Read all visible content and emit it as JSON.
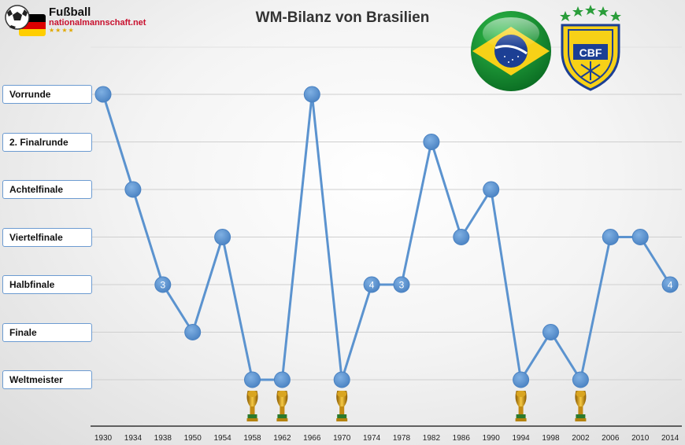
{
  "title": "WM-Bilanz von Brasilien",
  "logo": {
    "line1": "Fußball",
    "line2": "nationalmannschaft.net",
    "stars": "★★★★"
  },
  "crest": {
    "text": "CBF"
  },
  "colors": {
    "line": "#5b93cf",
    "marker": "#5b93cf",
    "label_border": "#6c9bd1"
  },
  "chart_data": {
    "type": "line",
    "title": "WM-Bilanz von Brasilien",
    "x": [
      "1930",
      "1934",
      "1938",
      "1950",
      "1954",
      "1958",
      "1962",
      "1966",
      "1970",
      "1974",
      "1978",
      "1982",
      "1986",
      "1990",
      "1994",
      "1998",
      "2002",
      "2006",
      "2010",
      "2014"
    ],
    "y_categories": [
      "Vorrunde",
      "2. Finalrunde",
      "Achtelfinale",
      "Viertelfinale",
      "Halbfinale",
      "Finale",
      "Weltmeister"
    ],
    "values": [
      "Vorrunde",
      "Achtelfinale",
      "Halbfinale",
      "Finale",
      "Viertelfinale",
      "Weltmeister",
      "Weltmeister",
      "Vorrunde",
      "Weltmeister",
      "Halbfinale",
      "Halbfinale",
      "2. Finalrunde",
      "Viertelfinale",
      "Achtelfinale",
      "Weltmeister",
      "Finale",
      "Weltmeister",
      "Viertelfinale",
      "Viertelfinale",
      "Halbfinale"
    ],
    "point_labels": [
      "",
      "",
      "3",
      "",
      "",
      "",
      "",
      "",
      "",
      "4",
      "3",
      "",
      "",
      "",
      "",
      "",
      "",
      "",
      "",
      "4"
    ],
    "trophy_years": [
      "1958",
      "1962",
      "1970",
      "1994",
      "2002"
    ],
    "grid": true
  }
}
